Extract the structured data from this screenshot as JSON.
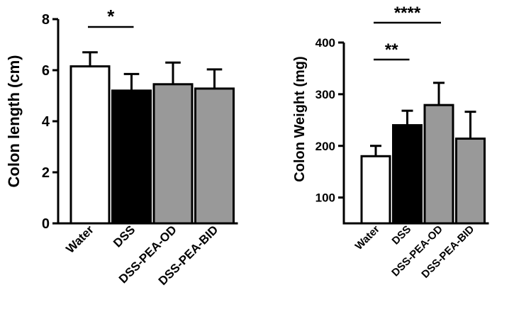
{
  "chart_data": [
    {
      "type": "bar",
      "categories": [
        "Water",
        "DSS",
        "DSS-PEA-OD",
        "DSS-PEA-BID"
      ],
      "values": [
        6.15,
        5.2,
        5.45,
        5.28
      ],
      "error": [
        0.55,
        0.65,
        0.85,
        0.75
      ],
      "colors": [
        "#ffffff",
        "#000000",
        "#999999",
        "#999999"
      ],
      "ylabel": "Colon length (cm)",
      "ylim": [
        0,
        8
      ],
      "yticks": [
        "0",
        "2",
        "4",
        "6",
        "8"
      ],
      "significance": [
        {
          "from": "Water",
          "to": "DSS",
          "label": "*"
        }
      ]
    },
    {
      "type": "bar",
      "categories": [
        "Water",
        "DSS",
        "DSS-PEA-OD",
        "DSS-PEA-BID"
      ],
      "values": [
        180,
        240,
        279,
        214
      ],
      "error": [
        20,
        28,
        43,
        52
      ],
      "colors": [
        "#ffffff",
        "#000000",
        "#999999",
        "#999999"
      ],
      "ylabel": "Colon Weight (mg)",
      "ylim": [
        50,
        400
      ],
      "yticks": [
        "100",
        "200",
        "300",
        "400"
      ],
      "significance": [
        {
          "from": "Water",
          "to": "DSS",
          "label": "**"
        },
        {
          "from": "Water",
          "to": "DSS-PEA-OD",
          "label": "****"
        }
      ]
    }
  ]
}
